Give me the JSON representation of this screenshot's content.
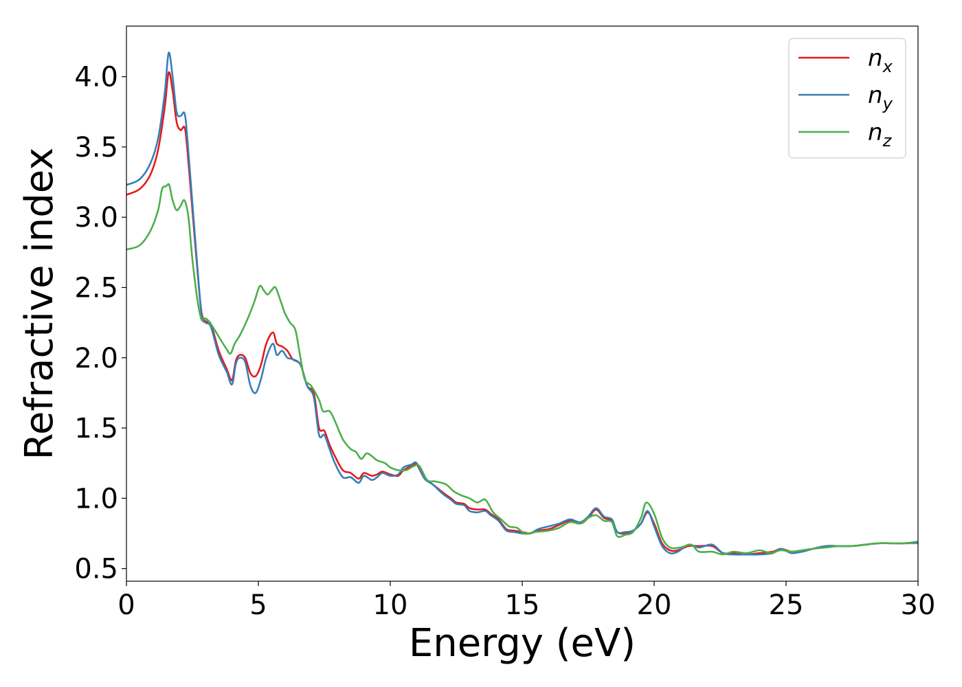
{
  "chart_data": {
    "type": "line",
    "title": "",
    "xlabel": "Energy (eV)",
    "ylabel": "Refractive index",
    "xlim": [
      0,
      30
    ],
    "ylim": [
      0.41,
      4.36
    ],
    "xticks": [
      0,
      5,
      10,
      15,
      20,
      25,
      30
    ],
    "xtick_labels": [
      "0",
      "5",
      "10",
      "15",
      "20",
      "25",
      "30"
    ],
    "yticks": [
      0.5,
      1.0,
      1.5,
      2.0,
      2.5,
      3.0,
      3.5,
      4.0
    ],
    "ytick_labels": [
      "0.5",
      "1.0",
      "1.5",
      "2.0",
      "2.5",
      "3.0",
      "3.5",
      "4.0"
    ],
    "grid": false,
    "legend_position": "top-right",
    "series": [
      {
        "name": "n_x",
        "label_base": "n",
        "label_sub": "x",
        "color": "#e41a1c",
        "points": [
          [
            0,
            3.16
          ],
          [
            0.5,
            3.2
          ],
          [
            0.9,
            3.3
          ],
          [
            1.2,
            3.48
          ],
          [
            1.45,
            3.78
          ],
          [
            1.6,
            4.03
          ],
          [
            1.75,
            3.9
          ],
          [
            1.9,
            3.68
          ],
          [
            2.05,
            3.62
          ],
          [
            2.2,
            3.64
          ],
          [
            2.3,
            3.5
          ],
          [
            2.5,
            3.05
          ],
          [
            2.7,
            2.6
          ],
          [
            2.85,
            2.32
          ],
          [
            3.0,
            2.26
          ],
          [
            3.2,
            2.24
          ],
          [
            3.5,
            2.05
          ],
          [
            3.8,
            1.92
          ],
          [
            4.0,
            1.84
          ],
          [
            4.15,
            1.98
          ],
          [
            4.3,
            2.02
          ],
          [
            4.5,
            2.0
          ],
          [
            4.7,
            1.89
          ],
          [
            4.9,
            1.87
          ],
          [
            5.1,
            1.95
          ],
          [
            5.3,
            2.1
          ],
          [
            5.55,
            2.18
          ],
          [
            5.7,
            2.1
          ],
          [
            5.9,
            2.08
          ],
          [
            6.1,
            2.05
          ],
          [
            6.3,
            1.99
          ],
          [
            6.6,
            1.95
          ],
          [
            6.85,
            1.8
          ],
          [
            7.1,
            1.75
          ],
          [
            7.3,
            1.5
          ],
          [
            7.5,
            1.48
          ],
          [
            7.7,
            1.38
          ],
          [
            7.9,
            1.3
          ],
          [
            8.2,
            1.2
          ],
          [
            8.5,
            1.18
          ],
          [
            8.8,
            1.14
          ],
          [
            9.0,
            1.18
          ],
          [
            9.3,
            1.16
          ],
          [
            9.5,
            1.17
          ],
          [
            9.7,
            1.19
          ],
          [
            10.0,
            1.17
          ],
          [
            10.3,
            1.16
          ],
          [
            10.5,
            1.2
          ],
          [
            10.8,
            1.23
          ],
          [
            11.0,
            1.24
          ],
          [
            11.3,
            1.14
          ],
          [
            11.6,
            1.1
          ],
          [
            12.0,
            1.04
          ],
          [
            12.3,
            1.0
          ],
          [
            12.5,
            0.97
          ],
          [
            12.8,
            0.96
          ],
          [
            13.0,
            0.93
          ],
          [
            13.3,
            0.92
          ],
          [
            13.6,
            0.92
          ],
          [
            13.8,
            0.89
          ],
          [
            14.1,
            0.85
          ],
          [
            14.4,
            0.78
          ],
          [
            14.7,
            0.77
          ],
          [
            15.0,
            0.76
          ],
          [
            15.3,
            0.75
          ],
          [
            15.6,
            0.77
          ],
          [
            16.0,
            0.78
          ],
          [
            16.4,
            0.81
          ],
          [
            16.8,
            0.84
          ],
          [
            17.2,
            0.82
          ],
          [
            17.5,
            0.86
          ],
          [
            17.8,
            0.92
          ],
          [
            18.1,
            0.86
          ],
          [
            18.4,
            0.84
          ],
          [
            18.6,
            0.76
          ],
          [
            18.9,
            0.75
          ],
          [
            19.2,
            0.77
          ],
          [
            19.5,
            0.82
          ],
          [
            19.75,
            0.9
          ],
          [
            20.0,
            0.82
          ],
          [
            20.3,
            0.68
          ],
          [
            20.6,
            0.63
          ],
          [
            20.9,
            0.63
          ],
          [
            21.3,
            0.66
          ],
          [
            21.7,
            0.66
          ],
          [
            22.2,
            0.66
          ],
          [
            22.6,
            0.61
          ],
          [
            23.0,
            0.61
          ],
          [
            23.5,
            0.6
          ],
          [
            24.0,
            0.61
          ],
          [
            24.5,
            0.62
          ],
          [
            24.8,
            0.64
          ],
          [
            25.2,
            0.62
          ],
          [
            25.6,
            0.62
          ],
          [
            26.0,
            0.64
          ],
          [
            26.5,
            0.66
          ],
          [
            27.0,
            0.66
          ],
          [
            27.5,
            0.66
          ],
          [
            28.0,
            0.67
          ],
          [
            28.5,
            0.68
          ],
          [
            29.0,
            0.68
          ],
          [
            29.5,
            0.68
          ],
          [
            30.0,
            0.69
          ]
        ]
      },
      {
        "name": "n_y",
        "label_base": "n",
        "label_sub": "y",
        "color": "#377eb8",
        "points": [
          [
            0,
            3.23
          ],
          [
            0.5,
            3.27
          ],
          [
            0.9,
            3.38
          ],
          [
            1.2,
            3.56
          ],
          [
            1.45,
            3.88
          ],
          [
            1.6,
            4.17
          ],
          [
            1.75,
            4.0
          ],
          [
            1.9,
            3.75
          ],
          [
            2.05,
            3.72
          ],
          [
            2.2,
            3.74
          ],
          [
            2.3,
            3.58
          ],
          [
            2.5,
            3.1
          ],
          [
            2.7,
            2.62
          ],
          [
            2.85,
            2.3
          ],
          [
            3.0,
            2.25
          ],
          [
            3.2,
            2.22
          ],
          [
            3.5,
            2.02
          ],
          [
            3.8,
            1.9
          ],
          [
            4.0,
            1.81
          ],
          [
            4.15,
            1.96
          ],
          [
            4.3,
            2.0
          ],
          [
            4.5,
            1.97
          ],
          [
            4.7,
            1.8
          ],
          [
            4.9,
            1.75
          ],
          [
            5.1,
            1.85
          ],
          [
            5.3,
            2.0
          ],
          [
            5.55,
            2.1
          ],
          [
            5.7,
            2.02
          ],
          [
            5.9,
            2.05
          ],
          [
            6.1,
            2.0
          ],
          [
            6.3,
            1.99
          ],
          [
            6.6,
            1.95
          ],
          [
            6.85,
            1.8
          ],
          [
            7.1,
            1.72
          ],
          [
            7.3,
            1.45
          ],
          [
            7.5,
            1.45
          ],
          [
            7.7,
            1.35
          ],
          [
            7.9,
            1.25
          ],
          [
            8.2,
            1.15
          ],
          [
            8.5,
            1.15
          ],
          [
            8.8,
            1.11
          ],
          [
            9.0,
            1.16
          ],
          [
            9.3,
            1.13
          ],
          [
            9.5,
            1.15
          ],
          [
            9.7,
            1.18
          ],
          [
            10.0,
            1.16
          ],
          [
            10.3,
            1.17
          ],
          [
            10.5,
            1.22
          ],
          [
            10.8,
            1.24
          ],
          [
            11.0,
            1.25
          ],
          [
            11.3,
            1.14
          ],
          [
            11.6,
            1.1
          ],
          [
            12.0,
            1.03
          ],
          [
            12.3,
            0.99
          ],
          [
            12.5,
            0.96
          ],
          [
            12.8,
            0.95
          ],
          [
            13.0,
            0.91
          ],
          [
            13.3,
            0.9
          ],
          [
            13.6,
            0.91
          ],
          [
            13.8,
            0.88
          ],
          [
            14.1,
            0.84
          ],
          [
            14.4,
            0.77
          ],
          [
            14.7,
            0.76
          ],
          [
            15.0,
            0.75
          ],
          [
            15.3,
            0.75
          ],
          [
            15.6,
            0.78
          ],
          [
            16.0,
            0.8
          ],
          [
            16.4,
            0.82
          ],
          [
            16.8,
            0.85
          ],
          [
            17.2,
            0.83
          ],
          [
            17.5,
            0.87
          ],
          [
            17.8,
            0.93
          ],
          [
            18.1,
            0.87
          ],
          [
            18.4,
            0.85
          ],
          [
            18.6,
            0.76
          ],
          [
            18.9,
            0.76
          ],
          [
            19.2,
            0.77
          ],
          [
            19.5,
            0.82
          ],
          [
            19.75,
            0.91
          ],
          [
            20.0,
            0.8
          ],
          [
            20.3,
            0.66
          ],
          [
            20.6,
            0.61
          ],
          [
            20.9,
            0.62
          ],
          [
            21.3,
            0.67
          ],
          [
            21.7,
            0.65
          ],
          [
            22.2,
            0.67
          ],
          [
            22.6,
            0.61
          ],
          [
            23.0,
            0.6
          ],
          [
            23.5,
            0.6
          ],
          [
            24.0,
            0.6
          ],
          [
            24.5,
            0.61
          ],
          [
            24.8,
            0.64
          ],
          [
            25.2,
            0.61
          ],
          [
            25.6,
            0.62
          ],
          [
            26.0,
            0.64
          ],
          [
            26.5,
            0.66
          ],
          [
            27.0,
            0.66
          ],
          [
            27.5,
            0.66
          ],
          [
            28.0,
            0.67
          ],
          [
            28.5,
            0.68
          ],
          [
            29.0,
            0.68
          ],
          [
            29.5,
            0.68
          ],
          [
            30.0,
            0.69
          ]
        ]
      },
      {
        "name": "n_z",
        "label_base": "n",
        "label_sub": "z",
        "color": "#4daf4a",
        "points": [
          [
            0,
            2.77
          ],
          [
            0.5,
            2.8
          ],
          [
            0.9,
            2.9
          ],
          [
            1.2,
            3.05
          ],
          [
            1.35,
            3.2
          ],
          [
            1.5,
            3.22
          ],
          [
            1.62,
            3.23
          ],
          [
            1.75,
            3.12
          ],
          [
            1.9,
            3.05
          ],
          [
            2.05,
            3.08
          ],
          [
            2.2,
            3.12
          ],
          [
            2.35,
            3.0
          ],
          [
            2.5,
            2.7
          ],
          [
            2.7,
            2.4
          ],
          [
            2.85,
            2.27
          ],
          [
            3.0,
            2.28
          ],
          [
            3.2,
            2.24
          ],
          [
            3.5,
            2.15
          ],
          [
            3.8,
            2.06
          ],
          [
            3.95,
            2.03
          ],
          [
            4.1,
            2.1
          ],
          [
            4.3,
            2.16
          ],
          [
            4.6,
            2.28
          ],
          [
            4.85,
            2.4
          ],
          [
            5.05,
            2.51
          ],
          [
            5.2,
            2.48
          ],
          [
            5.35,
            2.45
          ],
          [
            5.5,
            2.48
          ],
          [
            5.65,
            2.5
          ],
          [
            5.85,
            2.4
          ],
          [
            6.0,
            2.32
          ],
          [
            6.2,
            2.25
          ],
          [
            6.4,
            2.2
          ],
          [
            6.55,
            2.05
          ],
          [
            6.75,
            1.85
          ],
          [
            7.0,
            1.8
          ],
          [
            7.3,
            1.7
          ],
          [
            7.45,
            1.62
          ],
          [
            7.7,
            1.62
          ],
          [
            7.9,
            1.55
          ],
          [
            8.2,
            1.42
          ],
          [
            8.5,
            1.35
          ],
          [
            8.7,
            1.33
          ],
          [
            8.9,
            1.28
          ],
          [
            9.1,
            1.32
          ],
          [
            9.3,
            1.3
          ],
          [
            9.5,
            1.27
          ],
          [
            9.8,
            1.25
          ],
          [
            10.0,
            1.22
          ],
          [
            10.3,
            1.2
          ],
          [
            10.6,
            1.2
          ],
          [
            10.9,
            1.23
          ],
          [
            11.1,
            1.23
          ],
          [
            11.4,
            1.13
          ],
          [
            11.7,
            1.12
          ],
          [
            12.1,
            1.1
          ],
          [
            12.4,
            1.05
          ],
          [
            12.7,
            1.02
          ],
          [
            13.0,
            1.0
          ],
          [
            13.3,
            0.97
          ],
          [
            13.6,
            0.99
          ],
          [
            13.9,
            0.9
          ],
          [
            14.2,
            0.85
          ],
          [
            14.5,
            0.8
          ],
          [
            14.8,
            0.79
          ],
          [
            15.1,
            0.75
          ],
          [
            15.5,
            0.76
          ],
          [
            16.0,
            0.77
          ],
          [
            16.4,
            0.79
          ],
          [
            16.8,
            0.83
          ],
          [
            17.2,
            0.82
          ],
          [
            17.5,
            0.86
          ],
          [
            17.8,
            0.88
          ],
          [
            18.1,
            0.84
          ],
          [
            18.4,
            0.83
          ],
          [
            18.6,
            0.73
          ],
          [
            18.9,
            0.74
          ],
          [
            19.2,
            0.76
          ],
          [
            19.5,
            0.86
          ],
          [
            19.7,
            0.97
          ],
          [
            20.0,
            0.89
          ],
          [
            20.3,
            0.72
          ],
          [
            20.6,
            0.65
          ],
          [
            21.0,
            0.65
          ],
          [
            21.4,
            0.67
          ],
          [
            21.7,
            0.62
          ],
          [
            22.2,
            0.62
          ],
          [
            22.6,
            0.6
          ],
          [
            23.0,
            0.62
          ],
          [
            23.5,
            0.61
          ],
          [
            24.0,
            0.63
          ],
          [
            24.4,
            0.61
          ],
          [
            24.8,
            0.63
          ],
          [
            25.2,
            0.62
          ],
          [
            25.6,
            0.63
          ],
          [
            26.0,
            0.64
          ],
          [
            26.5,
            0.65
          ],
          [
            27.0,
            0.66
          ],
          [
            27.5,
            0.66
          ],
          [
            28.0,
            0.67
          ],
          [
            28.5,
            0.68
          ],
          [
            29.0,
            0.68
          ],
          [
            29.5,
            0.68
          ],
          [
            30.0,
            0.68
          ]
        ]
      }
    ]
  }
}
